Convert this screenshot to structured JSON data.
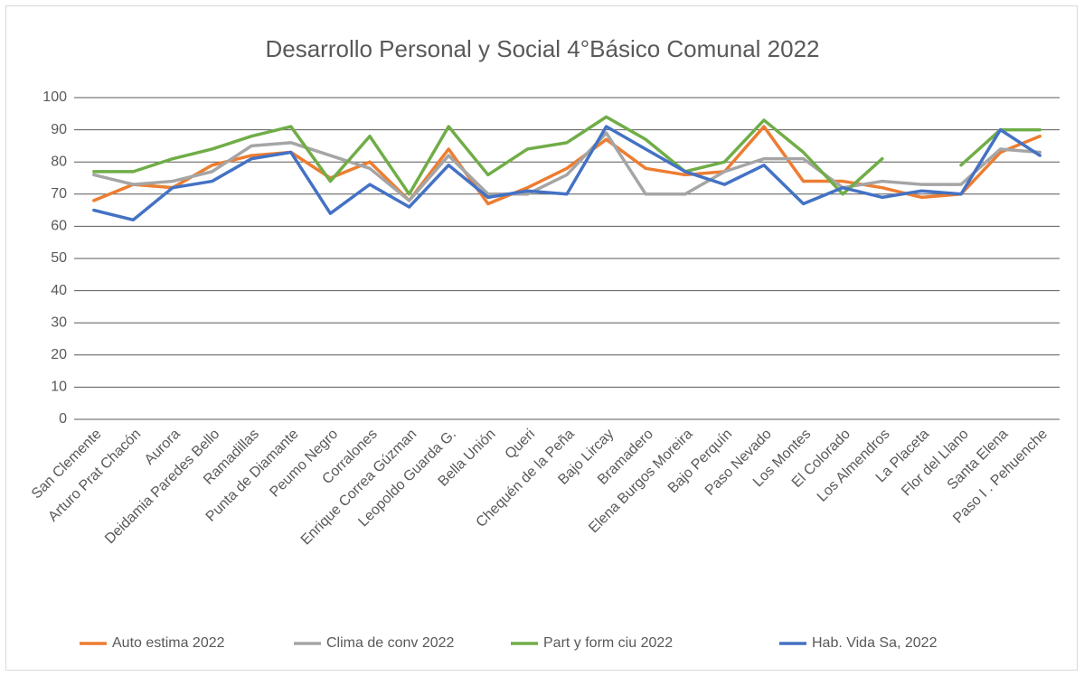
{
  "chart_data": {
    "type": "line",
    "title": "Desarrollo Personal y Social 4°Básico Comunal 2022",
    "categories": [
      "San Clemente",
      "Arturo Prat Chacón",
      "Aurora",
      "Deidamia Paredes Bello",
      "Ramadillas",
      "Punta de Diamante",
      "Peumo Negro",
      "Corralones",
      "Enrique Correa Gúzman",
      "Leopoldo Guarda G.",
      "Bella Unión",
      "Queri",
      "Chequén de la Peña",
      "Bajo Lircay",
      "Bramadero",
      "Elena Burgos Moreira",
      "Bajo Perquín",
      "Paso Nevado",
      "Los Montes",
      "El Colorado",
      "Los Almendros",
      "La Placeta",
      "Flor del Llano",
      "Santa Elena",
      "Paso I . Pehuenche"
    ],
    "series": [
      {
        "name": "Auto estima 2022",
        "color": "#ed7d31",
        "values": [
          68,
          73,
          72,
          79,
          82,
          83,
          75,
          80,
          68,
          84,
          67,
          72,
          78,
          87,
          78,
          76,
          77,
          91,
          74,
          74,
          72,
          69,
          70,
          83,
          88
        ]
      },
      {
        "name": "Clima de conv 2022",
        "color": "#a5a5a5",
        "values": [
          76,
          73,
          74,
          77,
          85,
          86,
          82,
          78,
          68,
          82,
          70,
          70,
          76,
          89,
          70,
          70,
          77,
          81,
          81,
          72,
          74,
          73,
          73,
          84,
          83
        ]
      },
      {
        "name": "Part y form ciu 2022",
        "color": "#70ad47",
        "values": [
          77,
          77,
          81,
          84,
          88,
          91,
          74,
          88,
          70,
          91,
          76,
          84,
          86,
          94,
          87,
          77,
          80,
          93,
          83,
          70,
          81,
          null,
          79,
          90,
          90
        ]
      },
      {
        "name": "Hab. Vida Sa, 2022",
        "color": "#4472c4",
        "values": [
          65,
          62,
          72,
          74,
          81,
          83,
          64,
          73,
          66,
          79,
          69,
          71,
          70,
          91,
          84,
          77,
          73,
          79,
          67,
          72,
          69,
          71,
          70,
          90,
          82
        ]
      }
    ],
    "ylim": [
      0,
      100
    ],
    "yticks": [
      0,
      10,
      20,
      30,
      40,
      50,
      60,
      70,
      80,
      90,
      100
    ],
    "grid": true,
    "legend": "bottom"
  }
}
